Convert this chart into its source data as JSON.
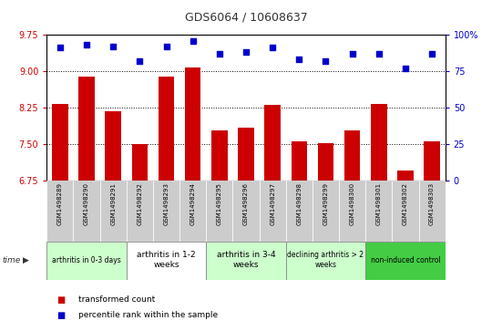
{
  "title": "GDS6064 / 10608637",
  "samples": [
    "GSM1498289",
    "GSM1498290",
    "GSM1498291",
    "GSM1498292",
    "GSM1498293",
    "GSM1498294",
    "GSM1498295",
    "GSM1498296",
    "GSM1498297",
    "GSM1498298",
    "GSM1498299",
    "GSM1498300",
    "GSM1498301",
    "GSM1498302",
    "GSM1498303"
  ],
  "bar_values": [
    8.32,
    8.88,
    8.18,
    7.5,
    8.88,
    9.08,
    7.78,
    7.84,
    8.3,
    7.55,
    7.52,
    7.78,
    8.32,
    6.95,
    7.56
  ],
  "dot_values": [
    91,
    93,
    92,
    82,
    92,
    96,
    87,
    88,
    91,
    83,
    82,
    87,
    87,
    77,
    87
  ],
  "ylim_left": [
    6.75,
    9.75
  ],
  "ylim_right": [
    0,
    100
  ],
  "yticks_left": [
    6.75,
    7.5,
    8.25,
    9.0,
    9.75
  ],
  "yticks_right": [
    0,
    25,
    50,
    75,
    100
  ],
  "bar_color": "#cc0000",
  "dot_color": "#0000cc",
  "groups": [
    {
      "label": "arthritis in 0-3 days",
      "start": 0,
      "end": 3,
      "color": "#ccffcc",
      "fontsize": 5.5
    },
    {
      "label": "arthritis in 1-2\nweeks",
      "start": 3,
      "end": 6,
      "color": "#ffffff",
      "fontsize": 6.5
    },
    {
      "label": "arthritis in 3-4\nweeks",
      "start": 6,
      "end": 9,
      "color": "#ccffcc",
      "fontsize": 6.5
    },
    {
      "label": "declining arthritis > 2\nweeks",
      "start": 9,
      "end": 12,
      "color": "#ccffcc",
      "fontsize": 5.5
    },
    {
      "label": "non-induced control",
      "start": 12,
      "end": 15,
      "color": "#44cc44",
      "fontsize": 5.5
    }
  ],
  "xlabel": "time",
  "legend_bar_label": "transformed count",
  "legend_dot_label": "percentile rank within the sample",
  "title_color": "#333333",
  "left_axis_color": "#cc0000",
  "right_axis_color": "#0000cc",
  "grid_color": "#000000",
  "sample_col_color": "#cccccc",
  "sample_col_edge": "#ffffff"
}
